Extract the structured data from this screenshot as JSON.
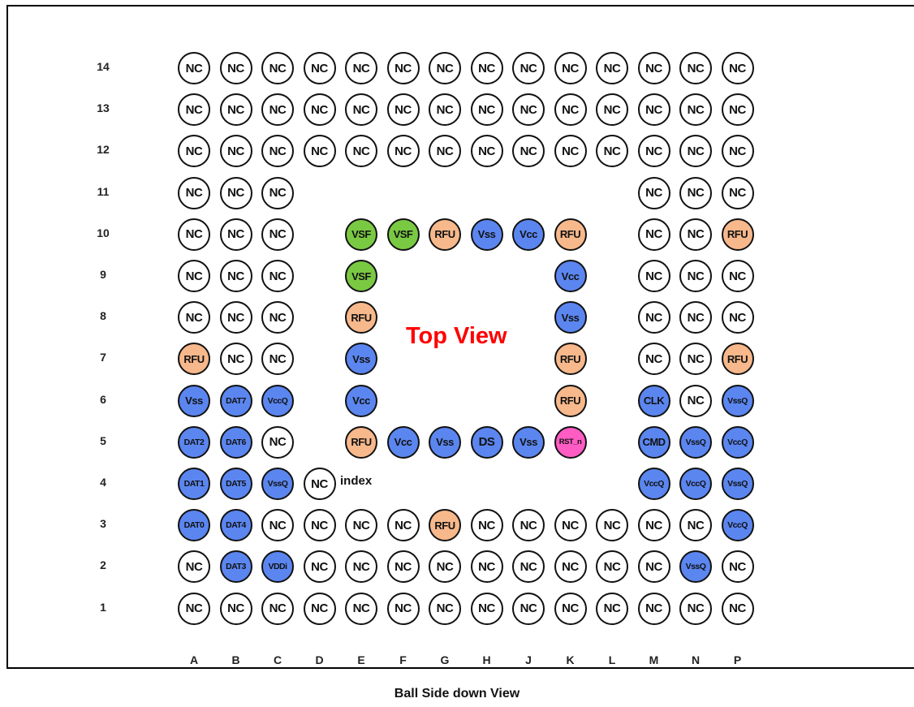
{
  "colors": {
    "NC": "#ffffff",
    "VSF": "#7ac943",
    "RFU": "#f7b88b",
    "power": "#5b86f0",
    "RST_n": "#ff5cc4"
  },
  "rows": [
    "14",
    "13",
    "12",
    "11",
    "10",
    "9",
    "8",
    "7",
    "6",
    "5",
    "4",
    "3",
    "2",
    "1"
  ],
  "columns": [
    "A",
    "B",
    "C",
    "D",
    "E",
    "F",
    "G",
    "H",
    "J",
    "K",
    "L",
    "M",
    "N",
    "P"
  ],
  "grid": [
    [
      "NC",
      "NC",
      "NC",
      "NC",
      "NC",
      "NC",
      "NC",
      "NC",
      "NC",
      "NC",
      "NC",
      "NC",
      "NC",
      "NC"
    ],
    [
      "NC",
      "NC",
      "NC",
      "NC",
      "NC",
      "NC",
      "NC",
      "NC",
      "NC",
      "NC",
      "NC",
      "NC",
      "NC",
      "NC"
    ],
    [
      "NC",
      "NC",
      "NC",
      "NC",
      "NC",
      "NC",
      "NC",
      "NC",
      "NC",
      "NC",
      "NC",
      "NC",
      "NC",
      "NC"
    ],
    [
      "NC",
      "NC",
      "NC",
      "",
      "",
      "",
      "",
      "",
      "",
      "",
      "",
      "NC",
      "NC",
      "NC"
    ],
    [
      "NC",
      "NC",
      "NC",
      "",
      "VSF",
      "VSF",
      "RFU",
      "Vss",
      "Vcc",
      "RFU",
      "",
      "NC",
      "NC",
      "RFU"
    ],
    [
      "NC",
      "NC",
      "NC",
      "",
      "VSF",
      "",
      "",
      "",
      "",
      "Vcc",
      "",
      "NC",
      "NC",
      "NC"
    ],
    [
      "NC",
      "NC",
      "NC",
      "",
      "RFU",
      "",
      "",
      "",
      "",
      "Vss",
      "",
      "NC",
      "NC",
      "NC"
    ],
    [
      "RFU",
      "NC",
      "NC",
      "",
      "Vss",
      "",
      "",
      "",
      "",
      "RFU",
      "",
      "NC",
      "NC",
      "RFU"
    ],
    [
      "Vss",
      "DAT7",
      "VccQ",
      "",
      "Vcc",
      "",
      "",
      "",
      "",
      "RFU",
      "",
      "CLK",
      "NC",
      "VssQ"
    ],
    [
      "DAT2",
      "DAT6",
      "NC",
      "",
      "RFU",
      "Vcc",
      "Vss",
      "DS",
      "Vss",
      "RST_n",
      "",
      "CMD",
      "VssQ",
      "VccQ"
    ],
    [
      "DAT1",
      "DAT5",
      "VssQ",
      "NC",
      "",
      "",
      "",
      "",
      "",
      "",
      "",
      "VccQ",
      "VccQ",
      "VssQ"
    ],
    [
      "DAT0",
      "DAT4",
      "NC",
      "NC",
      "NC",
      "NC",
      "RFU",
      "NC",
      "NC",
      "NC",
      "NC",
      "NC",
      "NC",
      "VccQ"
    ],
    [
      "NC",
      "DAT3",
      "VDDi",
      "NC",
      "NC",
      "NC",
      "NC",
      "NC",
      "NC",
      "NC",
      "NC",
      "NC",
      "VssQ",
      "NC"
    ],
    [
      "NC",
      "NC",
      "NC",
      "NC",
      "NC",
      "NC",
      "NC",
      "NC",
      "NC",
      "NC",
      "NC",
      "NC",
      "NC",
      "NC"
    ]
  ],
  "center_label": "Top View",
  "index_label": "index",
  "caption": "Ball Side down View"
}
